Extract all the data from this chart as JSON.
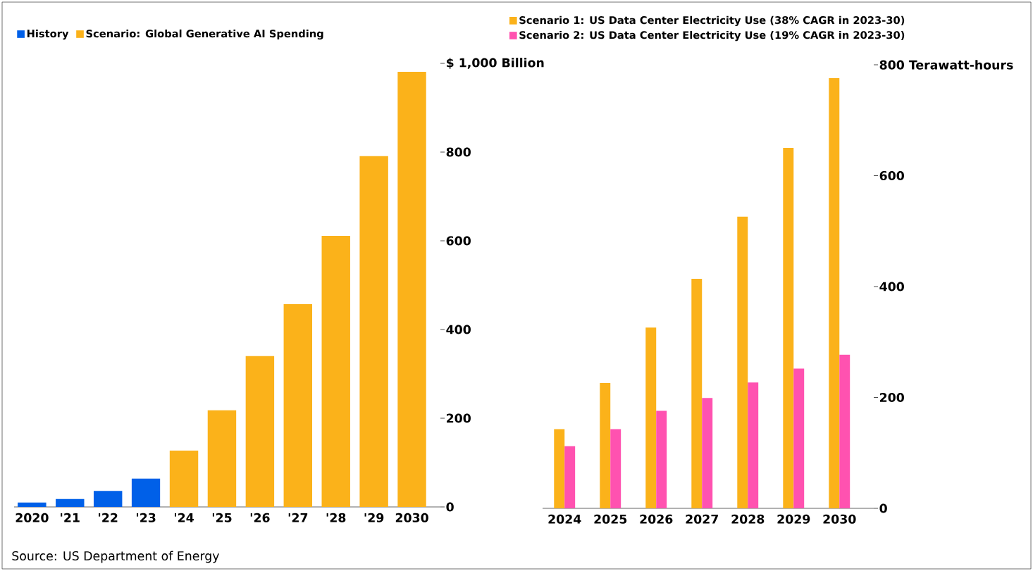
{
  "chart_data": [
    {
      "type": "bar",
      "categories": [
        "2020",
        "'21",
        "'22",
        "'23",
        "'24",
        "'25",
        "'26",
        "'27",
        "'28",
        "'29",
        "2030"
      ],
      "series": [
        {
          "name": "History",
          "color": "#0060e8",
          "values": [
            10,
            18,
            36,
            64,
            null,
            null,
            null,
            null,
            null,
            null,
            null
          ]
        },
        {
          "name": "Scenario: Global Generative AI Spending",
          "color": "#fbb21a",
          "values": [
            null,
            null,
            null,
            null,
            127,
            218,
            340,
            457,
            611,
            791,
            981
          ]
        }
      ],
      "ylim": [
        0,
        1000
      ],
      "yticks": [
        0,
        200,
        400,
        600,
        800,
        {
          "value": 1000,
          "label": "$ 1,000 Billion"
        }
      ],
      "legend": "top left",
      "annotations": [
        "Source: US Department of Energy"
      ]
    },
    {
      "type": "bar",
      "categories": [
        "2024",
        "2025",
        "2026",
        "2027",
        "2028",
        "2029",
        "2030"
      ],
      "series": [
        {
          "name": "Scenario 1: US Data Center Electricity Use (38% CAGR in 2023-30)",
          "color": "#fbb21a",
          "values": [
            143,
            226,
            326,
            414,
            526,
            650,
            776
          ]
        },
        {
          "name": "Scenario 2: US Data Center Electricity Use (19% CAGR in 2023-30)",
          "color": "#ff52b0",
          "values": [
            112,
            143,
            176,
            199,
            227,
            252,
            277
          ]
        }
      ],
      "ylim": [
        0,
        800
      ],
      "yticks": [
        0,
        200,
        400,
        600,
        {
          "value": 800,
          "label": "800 Terawatt-hours"
        }
      ],
      "legend": "top"
    }
  ]
}
